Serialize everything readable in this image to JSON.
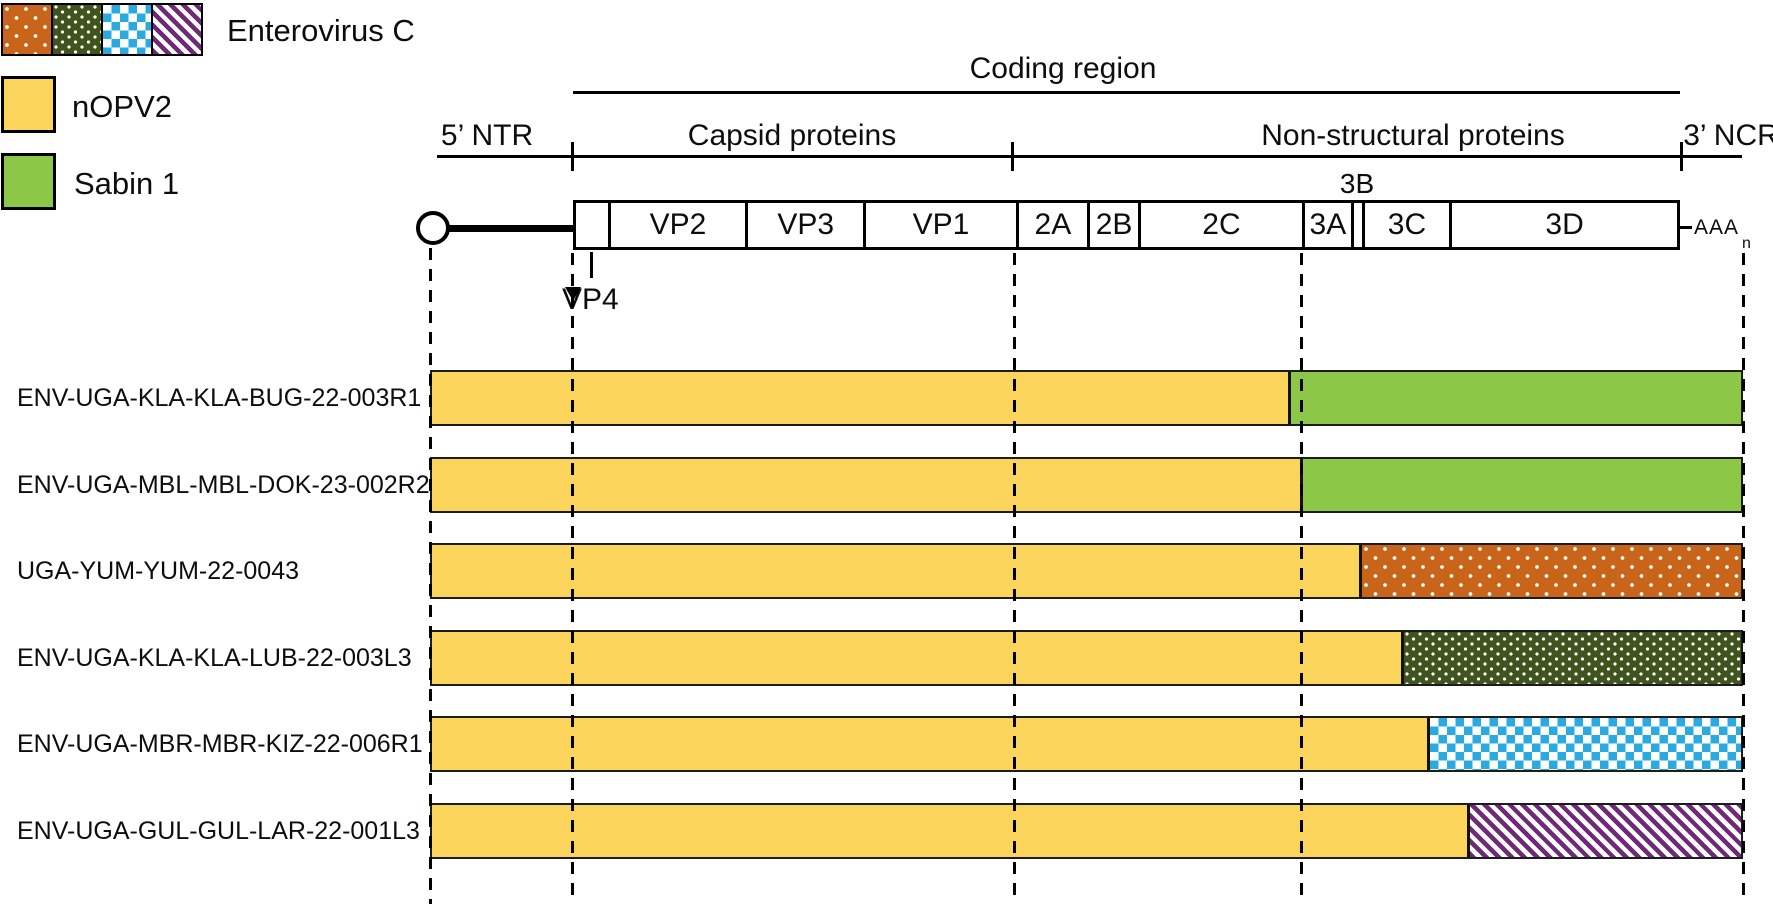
{
  "colors": {
    "yellow": "#FBD45C",
    "sabin_green": "#8DC747",
    "ev_orange": "#C8651B",
    "ev_dark_green": "#40541E",
    "ev_blue": "#29ABE2",
    "ev_purple": "#702878"
  },
  "legend": {
    "enterovirus_c": {
      "label": "Enterovirus C",
      "patterns": [
        "orange-dots",
        "darkgreen-dots",
        "blue-checker",
        "purple-stripes"
      ]
    },
    "nopv2": {
      "label": "nOPV2"
    },
    "sabin1": {
      "label": "Sabin 1"
    }
  },
  "genome": {
    "coding_region_label": "Coding region",
    "region_labels": {
      "five_ntr": "5’ NTR",
      "capsid": "Capsid proteins",
      "nonstructural": "Non-structural proteins",
      "three_ncr": "3’ NCR"
    },
    "total_len": 1107,
    "segments": [
      {
        "name": "VP4",
        "label": "",
        "start": 0,
        "end": 32
      },
      {
        "name": "VP2",
        "label": "VP2",
        "start": 32,
        "end": 170
      },
      {
        "name": "VP3",
        "label": "VP3",
        "start": 170,
        "end": 289
      },
      {
        "name": "VP1",
        "label": "VP1",
        "start": 289,
        "end": 442
      },
      {
        "name": "2A",
        "label": "2A",
        "start": 442,
        "end": 514
      },
      {
        "name": "2B",
        "label": "2B",
        "start": 514,
        "end": 565
      },
      {
        "name": "2C",
        "label": "2C",
        "start": 565,
        "end": 730
      },
      {
        "name": "3A",
        "label": "3A",
        "start": 730,
        "end": 779
      },
      {
        "name": "3B",
        "label": "",
        "start": 779,
        "end": 790
      },
      {
        "name": "3C",
        "label": "3C",
        "start": 790,
        "end": 878
      },
      {
        "name": "3D",
        "label": "3D",
        "start": 878,
        "end": 1107
      }
    ],
    "vp4_label": "VP4",
    "threeb_label": "3B",
    "polya_label": "AAA",
    "polya_subscript": "n"
  },
  "guides_pct": [
    0,
    10.89,
    44.48,
    66.41,
    100
  ],
  "samples": [
    {
      "name": "ENV-UGA-KLA-KLA-BUG-22-003R1",
      "breakpoint_pct": 65.4,
      "pattern": "solid-green"
    },
    {
      "name": "ENV-UGA-MBL-MBL-DOK-23-002R2",
      "breakpoint_pct": 66.3,
      "pattern": "solid-green"
    },
    {
      "name": "UGA-YUM-YUM-22-0043",
      "breakpoint_pct": 70.8,
      "pattern": "orange-dots"
    },
    {
      "name": "ENV-UGA-KLA-KLA-LUB-22-003L3",
      "breakpoint_pct": 74.0,
      "pattern": "darkgreen-dots"
    },
    {
      "name": "ENV-UGA-MBR-MBR-KIZ-22-006R1",
      "breakpoint_pct": 76.0,
      "pattern": "blue-checker"
    },
    {
      "name": "ENV-UGA-GUL-GUL-LAR-22-001L3",
      "breakpoint_pct": 79.1,
      "pattern": "purple-stripes"
    }
  ]
}
